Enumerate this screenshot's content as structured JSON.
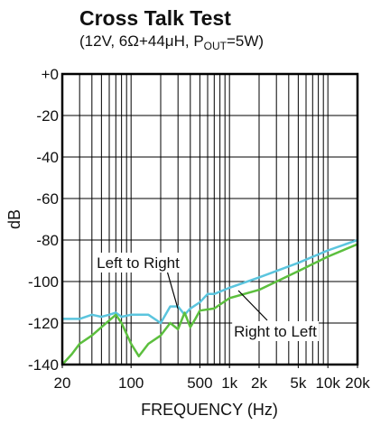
{
  "chart_data": {
    "type": "line",
    "title": "Cross Talk Test",
    "subtitle": [
      "(12V, 6Ω+44μH, P",
      "OUT",
      "=5W)"
    ],
    "xlabel": "FREQUENCY (Hz)",
    "ylabel": "dB",
    "xscale": "log",
    "xlim": [
      20,
      20000
    ],
    "ylim": [
      -140,
      0
    ],
    "xticks": [
      20,
      100,
      500,
      {
        "value": 1000,
        "label": "1k"
      },
      {
        "value": 2000,
        "label": "2k"
      },
      {
        "value": 5000,
        "label": "5k"
      },
      {
        "value": 10000,
        "label": "10k"
      },
      {
        "value": 20000,
        "label": "20k"
      }
    ],
    "xgrid": [
      20,
      30,
      40,
      50,
      60,
      70,
      80,
      90,
      100,
      200,
      300,
      400,
      500,
      600,
      700,
      800,
      900,
      1000,
      2000,
      3000,
      4000,
      5000,
      6000,
      7000,
      8000,
      9000,
      10000,
      20000
    ],
    "yticks": [
      {
        "value": 0,
        "label": "+0"
      },
      -20,
      -40,
      -60,
      -80,
      -100,
      -120,
      -140
    ],
    "grid": true,
    "series": [
      {
        "name": "Left to Right",
        "color": "#5bc5de",
        "x": [
          20,
          30,
          40,
          50,
          60,
          70,
          80,
          100,
          150,
          200,
          250,
          300,
          350,
          400,
          500,
          600,
          700,
          1000,
          2000,
          5000,
          10000,
          20000
        ],
        "values": [
          -118,
          -118,
          -116,
          -117,
          -116,
          -115,
          -117,
          -116,
          -116,
          -120,
          -112,
          -112,
          -116,
          -113,
          -110,
          -106,
          -106,
          -103,
          -98,
          -91,
          -85,
          -80
        ]
      },
      {
        "name": "Right to Left",
        "color": "#5cbf3e",
        "x": [
          20,
          25,
          30,
          40,
          50,
          70,
          80,
          100,
          120,
          150,
          200,
          250,
          300,
          350,
          400,
          450,
          500,
          700,
          1000,
          2000,
          5000,
          10000,
          20000
        ],
        "values": [
          -140,
          -135,
          -130,
          -126,
          -122,
          -116,
          -120,
          -130,
          -136,
          -130,
          -126,
          -120,
          -123,
          -115,
          -122,
          -118,
          -114,
          -113,
          -108,
          -104,
          -95,
          -88,
          -82
        ]
      }
    ]
  }
}
